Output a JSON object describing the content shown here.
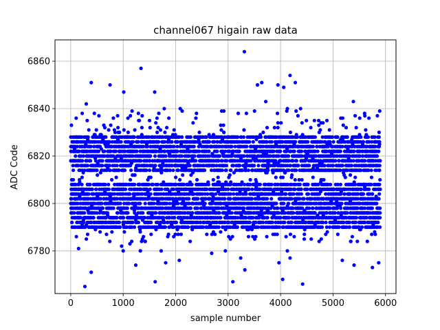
{
  "chart_data": {
    "type": "scatter",
    "title": "channel067 higain raw data",
    "xlabel": "sample number",
    "ylabel": "ADC Code",
    "xlim": [
      -300,
      6200
    ],
    "ylim": [
      6762,
      6869
    ],
    "x_ticks": [
      0,
      1000,
      2000,
      3000,
      4000,
      5000,
      6000
    ],
    "y_ticks": [
      6780,
      6800,
      6820,
      6840,
      6860
    ],
    "grid": true,
    "marker_color": "#0000ff",
    "series": [
      {
        "n_samples": 5900,
        "levels": [
          6790,
          6792,
          6794,
          6796,
          6798,
          6800,
          6802,
          6804,
          6806,
          6808,
          6814,
          6816,
          6818,
          6820,
          6822,
          6824,
          6826,
          6828
        ],
        "sparse_range": [
          6776,
          6844
        ],
        "outliers": [
          {
            "x": 3310,
            "y": 6864
          },
          {
            "x": 1340,
            "y": 6857
          },
          {
            "x": 4180,
            "y": 6854
          },
          {
            "x": 390,
            "y": 6851
          },
          {
            "x": 750,
            "y": 6850
          },
          {
            "x": 3560,
            "y": 6850
          },
          {
            "x": 3640,
            "y": 6851
          },
          {
            "x": 3950,
            "y": 6850
          },
          {
            "x": 4280,
            "y": 6851
          },
          {
            "x": 1010,
            "y": 6847
          },
          {
            "x": 1600,
            "y": 6847
          },
          {
            "x": 4060,
            "y": 6849
          },
          {
            "x": 270,
            "y": 6765
          },
          {
            "x": 390,
            "y": 6771
          },
          {
            "x": 1240,
            "y": 6774
          },
          {
            "x": 1610,
            "y": 6767
          },
          {
            "x": 1810,
            "y": 6775
          },
          {
            "x": 2070,
            "y": 6776
          },
          {
            "x": 3090,
            "y": 6767
          },
          {
            "x": 3240,
            "y": 6777
          },
          {
            "x": 3320,
            "y": 6772
          },
          {
            "x": 3970,
            "y": 6775
          },
          {
            "x": 4040,
            "y": 6768
          },
          {
            "x": 4420,
            "y": 6766
          },
          {
            "x": 5400,
            "y": 6774
          },
          {
            "x": 5750,
            "y": 6773
          },
          {
            "x": 5870,
            "y": 6775
          },
          {
            "x": 150,
            "y": 6781
          },
          {
            "x": 1000,
            "y": 6780
          },
          {
            "x": 4180,
            "y": 6777
          }
        ]
      }
    ]
  }
}
